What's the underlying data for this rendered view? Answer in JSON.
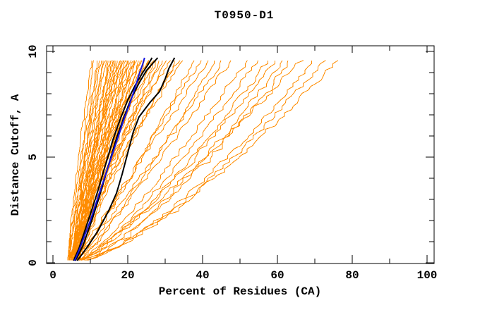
{
  "chart_data": {
    "type": "line",
    "title": "T0950-D1",
    "xlabel": "Percent of Residues (CA)",
    "ylabel": "Distance Cutoff, A",
    "xlim": [
      0,
      100
    ],
    "ylim": [
      0,
      10
    ],
    "grid": false,
    "legend": "none",
    "x_major_ticks": [
      0,
      20,
      40,
      60,
      80,
      100
    ],
    "x_minor_ticks": [
      10,
      30,
      50,
      70,
      90
    ],
    "y_major_ticks": [
      0,
      5,
      10
    ],
    "y_minor_ticks": [
      1,
      2,
      3,
      4,
      6,
      7,
      8,
      9
    ],
    "colors": {
      "model_curves": "#FF8C00",
      "highlight_black": "#000000",
      "highlight_blue": "#1515E0",
      "axis": "#000000",
      "background": "#FFFFFF"
    },
    "cutoff_plot_range": [
      0.12,
      9.7
    ],
    "orange_model_curves_pct_start_end": [
      [
        4,
        10.5
      ],
      [
        4.5,
        11
      ],
      [
        5,
        12
      ],
      [
        4,
        12.5
      ],
      [
        5.5,
        13
      ],
      [
        6,
        13.5
      ],
      [
        4.5,
        14
      ],
      [
        5,
        14.5
      ],
      [
        6,
        15
      ],
      [
        5.5,
        15.5
      ],
      [
        4,
        16
      ],
      [
        6.5,
        16
      ],
      [
        5,
        16.5
      ],
      [
        5.5,
        17
      ],
      [
        7,
        17
      ],
      [
        4.5,
        17.5
      ],
      [
        6,
        18
      ],
      [
        5,
        18
      ],
      [
        5.5,
        18.5
      ],
      [
        6.5,
        19
      ],
      [
        4,
        19
      ],
      [
        5,
        19.5
      ],
      [
        6,
        20
      ],
      [
        7,
        20
      ],
      [
        5.5,
        20.5
      ],
      [
        4.5,
        21
      ],
      [
        6,
        21.5
      ],
      [
        5,
        22
      ],
      [
        7,
        22
      ],
      [
        5.5,
        22.5
      ],
      [
        6.5,
        23
      ],
      [
        4.5,
        23.5
      ],
      [
        5,
        24
      ],
      [
        6,
        24.5
      ],
      [
        7,
        25
      ],
      [
        5.5,
        25.5
      ],
      [
        6,
        26
      ],
      [
        5,
        27
      ],
      [
        6.5,
        27.5
      ],
      [
        7,
        28
      ],
      [
        5.5,
        29
      ],
      [
        6,
        30
      ],
      [
        6.5,
        31
      ],
      [
        5,
        32
      ],
      [
        7,
        33
      ],
      [
        6,
        34
      ],
      [
        5.5,
        35
      ],
      [
        6.5,
        38
      ],
      [
        7,
        40
      ],
      [
        6,
        42
      ],
      [
        7.5,
        44
      ],
      [
        6.5,
        46
      ],
      [
        7,
        48
      ],
      [
        7.5,
        52
      ],
      [
        8,
        55
      ],
      [
        7,
        58
      ],
      [
        8,
        60
      ],
      [
        7.5,
        62
      ],
      [
        8.5,
        64
      ],
      [
        7,
        67
      ],
      [
        8,
        70
      ],
      [
        8.5,
        73
      ],
      [
        7.5,
        76.5
      ]
    ],
    "highlight_curves": [
      {
        "name": "black-model-1",
        "color": "#000000",
        "points": [
          [
            5.5,
            0.1
          ],
          [
            7,
            0.7
          ],
          [
            8.5,
            1.5
          ],
          [
            10,
            2.3
          ],
          [
            12,
            3.4
          ],
          [
            14,
            4.6
          ],
          [
            16,
            5.8
          ],
          [
            18,
            6.8
          ],
          [
            20,
            7.7
          ],
          [
            22,
            8.4
          ],
          [
            24,
            9.0
          ],
          [
            25.5,
            9.4
          ],
          [
            26.5,
            9.7
          ]
        ]
      },
      {
        "name": "black-model-2",
        "color": "#000000",
        "points": [
          [
            6,
            0.1
          ],
          [
            8,
            0.8
          ],
          [
            10,
            1.8
          ],
          [
            12,
            2.9
          ],
          [
            14,
            4.1
          ],
          [
            15.5,
            5.0
          ],
          [
            17,
            5.9
          ],
          [
            19,
            6.9
          ],
          [
            21,
            7.8
          ],
          [
            23,
            8.5
          ],
          [
            25,
            9.1
          ],
          [
            27,
            9.5
          ],
          [
            28,
            9.7
          ]
        ]
      },
      {
        "name": "black-model-3",
        "color": "#000000",
        "points": [
          [
            6.5,
            0.1
          ],
          [
            9,
            0.7
          ],
          [
            12,
            1.5
          ],
          [
            15,
            2.5
          ],
          [
            17,
            3.3
          ],
          [
            18.5,
            4.2
          ],
          [
            20,
            5.2
          ],
          [
            21.5,
            6.2
          ],
          [
            23,
            6.9
          ],
          [
            26,
            7.6
          ],
          [
            28.5,
            8.1
          ],
          [
            30,
            8.7
          ],
          [
            31,
            9.2
          ],
          [
            32.5,
            9.7
          ]
        ]
      },
      {
        "name": "blue-model",
        "color": "#1515E0",
        "points": [
          [
            5.8,
            0.1
          ],
          [
            7,
            0.6
          ],
          [
            8.5,
            1.3
          ],
          [
            10,
            2.0
          ],
          [
            11.5,
            2.8
          ],
          [
            13,
            3.6
          ],
          [
            14.5,
            4.4
          ],
          [
            16,
            5.2
          ],
          [
            17.5,
            6.0
          ],
          [
            19,
            6.8
          ],
          [
            20.5,
            7.5
          ],
          [
            22,
            8.3
          ],
          [
            23,
            8.9
          ],
          [
            24,
            9.4
          ],
          [
            24.5,
            9.7
          ]
        ]
      }
    ]
  }
}
